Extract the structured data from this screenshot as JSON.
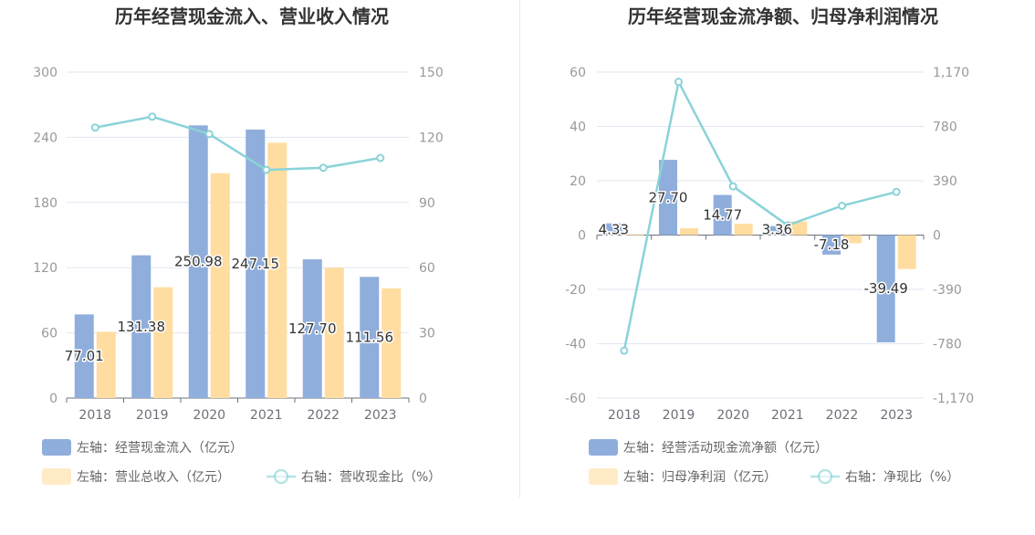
{
  "chart_data": [
    {
      "type": "bar",
      "title": "历年经营现金流入、营业收入情况",
      "categories": [
        "2018",
        "2019",
        "2020",
        "2021",
        "2022",
        "2023"
      ],
      "left_axis": {
        "ylim": [
          0,
          300
        ],
        "ticks": [
          "0",
          "60",
          "120",
          "180",
          "240",
          "300"
        ]
      },
      "right_axis": {
        "ylim": [
          0,
          150
        ],
        "ticks": [
          "0",
          "30",
          "60",
          "90",
          "120",
          "150"
        ]
      },
      "grid": true,
      "legend_position": "bottom-left",
      "series": [
        {
          "name": "左轴：经营现金流入（亿元）",
          "type": "bar",
          "axis": "left",
          "color": "#8faedc",
          "values": [
            77.01,
            131.38,
            250.98,
            247.15,
            127.7,
            111.56
          ],
          "labels": [
            "77.01",
            "131.38",
            "250.98",
            "247.15",
            "127.70",
            "111.56"
          ]
        },
        {
          "name": "左轴：营业总收入（亿元）",
          "type": "bar",
          "axis": "left",
          "color": "#ffdda0",
          "values": [
            61,
            102,
            207,
            235,
            120,
            101
          ]
        },
        {
          "name": "右轴：营收现金比（%）",
          "type": "line",
          "axis": "right",
          "color": "#8ad3d8",
          "values": [
            124.5,
            129.5,
            121.5,
            105,
            106,
            110.5
          ]
        }
      ]
    },
    {
      "type": "bar",
      "title": "历年经营现金流净额、归母净利润情况",
      "categories": [
        "2018",
        "2019",
        "2020",
        "2021",
        "2022",
        "2023"
      ],
      "left_axis": {
        "ylim": [
          -60,
          60
        ],
        "ticks": [
          "-60",
          "-40",
          "-20",
          "0",
          "20",
          "40",
          "60"
        ]
      },
      "right_axis": {
        "ylim": [
          -1170,
          1170
        ],
        "ticks": [
          "-1,170",
          "-780",
          "-390",
          "0",
          "390",
          "780",
          "1,170"
        ]
      },
      "grid": true,
      "legend_position": "bottom-left",
      "series": [
        {
          "name": "左轴：经营活动现金流净额（亿元）",
          "type": "bar",
          "axis": "left",
          "color": "#8faedc",
          "values": [
            4.33,
            27.7,
            14.77,
            3.36,
            -7.18,
            -39.49
          ],
          "labels": [
            "4.33",
            "27.70",
            "14.77",
            "3.36",
            "-7.18",
            "-39.49"
          ]
        },
        {
          "name": "左轴：归母净利润（亿元）",
          "type": "bar",
          "axis": "left",
          "color": "#ffdda0",
          "values": [
            0.3,
            2.5,
            4.2,
            5.0,
            -3.0,
            -12.5
          ]
        },
        {
          "name": "右轴：净现比（%）",
          "type": "line",
          "axis": "right",
          "color": "#8ad3d8",
          "values": [
            -830,
            1100,
            350,
            70,
            210,
            310
          ]
        }
      ]
    }
  ]
}
